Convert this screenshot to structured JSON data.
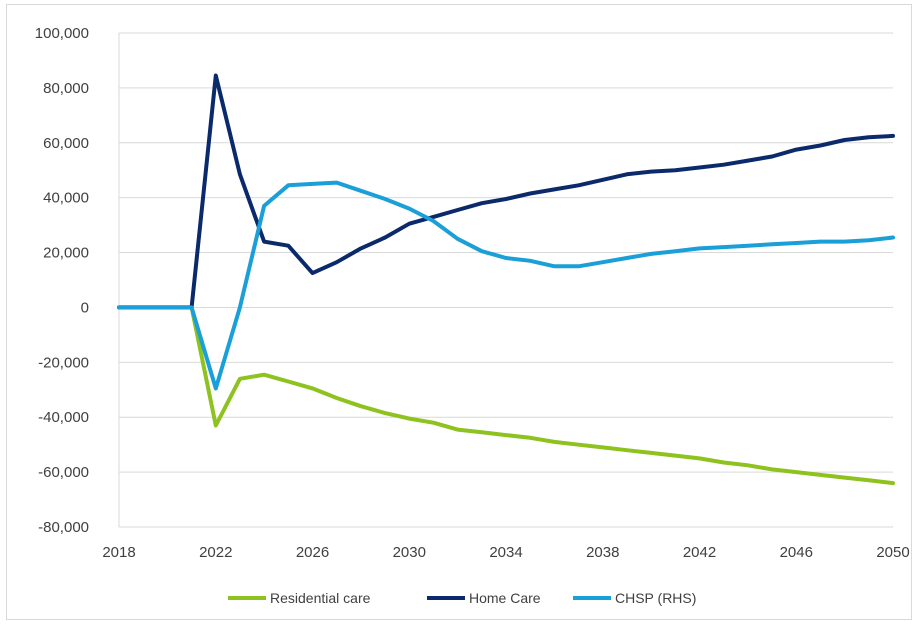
{
  "chart_data": {
    "type": "line",
    "x": [
      2018,
      2019,
      2020,
      2021,
      2022,
      2023,
      2024,
      2025,
      2026,
      2027,
      2028,
      2029,
      2030,
      2031,
      2032,
      2033,
      2034,
      2035,
      2036,
      2037,
      2038,
      2039,
      2040,
      2041,
      2042,
      2043,
      2044,
      2045,
      2046,
      2047,
      2048,
      2049,
      2050
    ],
    "x_tick_labels": [
      "2018",
      "2022",
      "2026",
      "2030",
      "2034",
      "2038",
      "2042",
      "2046",
      "2050"
    ],
    "x_ticks": [
      2018,
      2022,
      2026,
      2030,
      2034,
      2038,
      2042,
      2046,
      2050
    ],
    "xlim": [
      2018,
      2050
    ],
    "y_ticks": [
      -80000,
      -60000,
      -40000,
      -20000,
      0,
      20000,
      40000,
      60000,
      80000,
      100000
    ],
    "y_tick_labels": [
      "-80,000",
      "-60,000",
      "-40,000",
      "-20,000",
      "0",
      "20,000",
      "40,000",
      "60,000",
      "80,000",
      "100,000"
    ],
    "ylim": [
      -80000,
      100000
    ],
    "grid": "horizontal",
    "legend_position": "bottom",
    "series": [
      {
        "name": "Residential care",
        "color": "#8dc21f",
        "values": [
          0,
          0,
          0,
          0,
          -43000,
          -26000,
          -24500,
          -27000,
          -29500,
          -33000,
          -36000,
          -38500,
          -40500,
          -42000,
          -44500,
          -45500,
          -46500,
          -47500,
          -49000,
          -50000,
          -51000,
          -52000,
          -53000,
          -54000,
          -55000,
          -56500,
          -57500,
          -59000,
          -60000,
          -61000,
          -62000,
          -63000,
          -64000
        ]
      },
      {
        "name": "Home Care",
        "color": "#0b2a6b",
        "values": [
          0,
          0,
          0,
          0,
          84500,
          48500,
          24000,
          22500,
          12500,
          16500,
          21500,
          25500,
          30500,
          33000,
          35500,
          38000,
          39500,
          41500,
          43000,
          44500,
          46500,
          48500,
          49500,
          50000,
          51000,
          52000,
          53500,
          55000,
          57500,
          59000,
          61000,
          62000,
          62500
        ]
      },
      {
        "name": "CHSP (RHS)",
        "color": "#1a9fd8",
        "values": [
          0,
          0,
          0,
          0,
          -29500,
          0,
          37000,
          44500,
          45000,
          45500,
          42500,
          39500,
          36000,
          31500,
          25000,
          20500,
          18000,
          17000,
          15000,
          15000,
          16500,
          18000,
          19500,
          20500,
          21500,
          22000,
          22500,
          23000,
          23500,
          24000,
          24000,
          24500,
          25500
        ]
      }
    ]
  }
}
